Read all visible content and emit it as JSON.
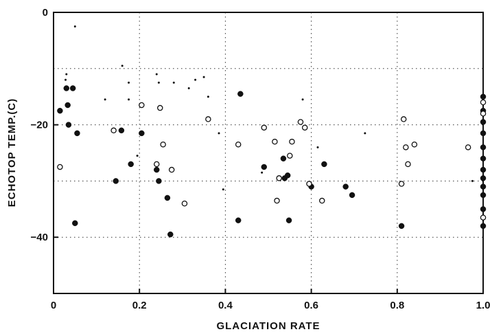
{
  "chart_data": {
    "type": "scatter",
    "title": "",
    "xlabel": "GLACIATION RATE",
    "ylabel": "ECHOTOP TEMP.(C)",
    "xlim": [
      0,
      1.0
    ],
    "ylim": [
      -50,
      0
    ],
    "x_ticks": [
      0,
      0.2,
      0.4,
      0.6,
      0.8,
      1.0
    ],
    "x_tick_labels": [
      "0",
      "0.2",
      "0.4",
      "0.6",
      "0.8",
      "1.0"
    ],
    "y_ticks": [
      0,
      -20,
      -40
    ],
    "y_tick_labels": [
      "0",
      "−20",
      "−40"
    ],
    "grid": "dotted",
    "grid_x": [
      0.2,
      0.4,
      0.6,
      0.8,
      1.0
    ],
    "grid_y": [
      -10,
      -20,
      -30,
      -40
    ],
    "legend": "none",
    "series": [
      {
        "marker": "filled-circle",
        "points": [
          [
            0.015,
            -17.5
          ],
          [
            0.03,
            -13.5
          ],
          [
            0.033,
            -16.5
          ],
          [
            0.035,
            -20.0
          ],
          [
            0.045,
            -13.5
          ],
          [
            0.055,
            -21.5
          ],
          [
            0.05,
            -37.5
          ],
          [
            0.145,
            -30.0
          ],
          [
            0.158,
            -21.0
          ],
          [
            0.18,
            -27.0
          ],
          [
            0.205,
            -21.5
          ],
          [
            0.24,
            -28.0
          ],
          [
            0.245,
            -30.0
          ],
          [
            0.265,
            -33.0
          ],
          [
            0.272,
            -39.5
          ],
          [
            0.43,
            -37.0
          ],
          [
            0.435,
            -14.5
          ],
          [
            0.49,
            -27.5
          ],
          [
            0.535,
            -26.0
          ],
          [
            0.538,
            -29.5
          ],
          [
            0.545,
            -29.0
          ],
          [
            0.548,
            -37.0
          ],
          [
            0.6,
            -31.0
          ],
          [
            0.63,
            -27.0
          ],
          [
            0.68,
            -31.0
          ],
          [
            0.695,
            -32.5
          ],
          [
            0.81,
            -38.0
          ],
          [
            1.0,
            -15.0
          ],
          [
            1.0,
            -17.5
          ],
          [
            1.0,
            -19.5
          ],
          [
            1.0,
            -21.5
          ],
          [
            1.0,
            -24.0
          ],
          [
            1.0,
            -26.0
          ],
          [
            1.0,
            -28.0
          ],
          [
            1.0,
            -29.5
          ],
          [
            1.0,
            -31.0
          ],
          [
            1.0,
            -32.5
          ],
          [
            1.0,
            -35.0
          ],
          [
            1.0,
            -38.0
          ]
        ]
      },
      {
        "marker": "open-circle",
        "points": [
          [
            0.015,
            -27.5
          ],
          [
            0.14,
            -21.0
          ],
          [
            0.205,
            -16.5
          ],
          [
            0.24,
            -27.0
          ],
          [
            0.248,
            -17.0
          ],
          [
            0.255,
            -23.5
          ],
          [
            0.275,
            -28.0
          ],
          [
            0.305,
            -34.0
          ],
          [
            0.36,
            -19.0
          ],
          [
            0.43,
            -23.5
          ],
          [
            0.49,
            -20.5
          ],
          [
            0.515,
            -23.0
          ],
          [
            0.52,
            -33.5
          ],
          [
            0.525,
            -29.5
          ],
          [
            0.55,
            -25.5
          ],
          [
            0.555,
            -23.0
          ],
          [
            0.575,
            -19.5
          ],
          [
            0.585,
            -20.5
          ],
          [
            0.595,
            -30.5
          ],
          [
            0.625,
            -33.5
          ],
          [
            0.81,
            -30.5
          ],
          [
            0.815,
            -19.0
          ],
          [
            0.82,
            -24.0
          ],
          [
            0.825,
            -27.0
          ],
          [
            0.84,
            -23.5
          ],
          [
            0.965,
            -24.0
          ],
          [
            1.0,
            -16.0
          ],
          [
            1.0,
            -18.0
          ],
          [
            1.0,
            -36.5
          ]
        ]
      },
      {
        "marker": "small-dot",
        "points": [
          [
            0.05,
            -2.5
          ],
          [
            0.03,
            -11.0
          ],
          [
            0.028,
            -12.0
          ],
          [
            0.12,
            -15.5
          ],
          [
            0.16,
            -9.5
          ],
          [
            0.175,
            -12.5
          ],
          [
            0.175,
            -15.5
          ],
          [
            0.195,
            -25.5
          ],
          [
            0.24,
            -11.0
          ],
          [
            0.245,
            -12.5
          ],
          [
            0.28,
            -12.5
          ],
          [
            0.315,
            -13.5
          ],
          [
            0.33,
            -12.0
          ],
          [
            0.35,
            -11.5
          ],
          [
            0.36,
            -15.0
          ],
          [
            0.385,
            -21.5
          ],
          [
            0.395,
            -31.5
          ],
          [
            0.485,
            -28.5
          ],
          [
            0.58,
            -15.5
          ],
          [
            0.615,
            -24.0
          ],
          [
            0.725,
            -21.5
          ],
          [
            0.975,
            -30.0
          ]
        ]
      }
    ]
  }
}
